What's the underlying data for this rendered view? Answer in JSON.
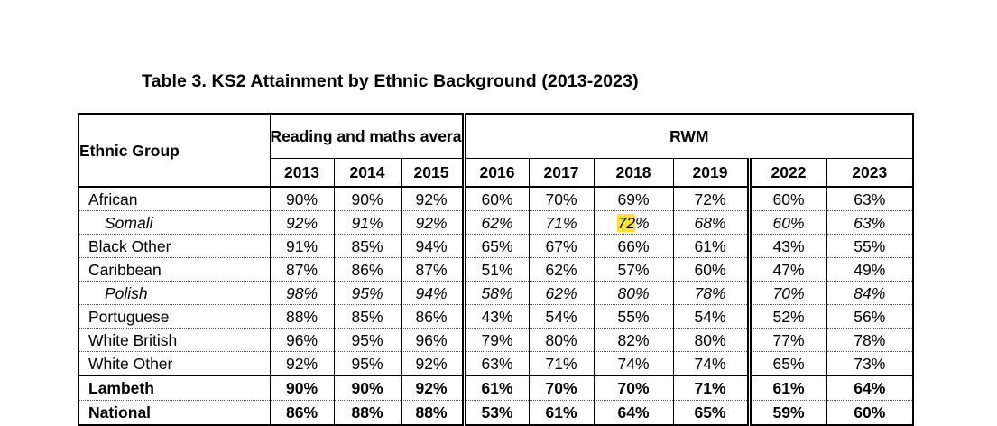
{
  "title": "Table 3.  KS2 Attainment by Ethnic Background (2013-2023)",
  "table": {
    "ethnic_group_header": "Ethnic Group",
    "group_reading_maths": "Reading and maths average",
    "group_rwm": "RWM",
    "years": [
      "2013",
      "2014",
      "2015",
      "2016",
      "2017",
      "2018",
      "2019",
      "2022",
      "2023"
    ],
    "rows": [
      {
        "name": "African",
        "style": "normal",
        "values": [
          "90%",
          "90%",
          "92%",
          "60%",
          "70%",
          "69%",
          "72%",
          "60%",
          "63%"
        ]
      },
      {
        "name": "Somali",
        "style": "italic",
        "values": [
          "92%",
          "91%",
          "92%",
          "62%",
          "71%",
          "72%",
          "68%",
          "60%",
          "63%"
        ]
      },
      {
        "name": "Black Other",
        "style": "normal",
        "values": [
          "91%",
          "85%",
          "94%",
          "65%",
          "67%",
          "66%",
          "61%",
          "43%",
          "55%"
        ]
      },
      {
        "name": "Caribbean",
        "style": "normal",
        "values": [
          "87%",
          "86%",
          "87%",
          "51%",
          "62%",
          "57%",
          "60%",
          "47%",
          "49%"
        ]
      },
      {
        "name": "Polish",
        "style": "italic",
        "values": [
          "98%",
          "95%",
          "94%",
          "58%",
          "62%",
          "80%",
          "78%",
          "70%",
          "84%"
        ]
      },
      {
        "name": "Portuguese",
        "style": "normal",
        "values": [
          "88%",
          "85%",
          "86%",
          "43%",
          "54%",
          "55%",
          "54%",
          "52%",
          "56%"
        ]
      },
      {
        "name": "White British",
        "style": "normal",
        "values": [
          "96%",
          "95%",
          "96%",
          "79%",
          "80%",
          "82%",
          "80%",
          "77%",
          "78%"
        ]
      },
      {
        "name": "White Other",
        "style": "normal",
        "values": [
          "92%",
          "95%",
          "92%",
          "63%",
          "71%",
          "74%",
          "74%",
          "65%",
          "73%"
        ]
      },
      {
        "name": "Lambeth",
        "style": "bold",
        "values": [
          "90%",
          "90%",
          "92%",
          "61%",
          "70%",
          "70%",
          "71%",
          "61%",
          "64%"
        ]
      },
      {
        "name": "National",
        "style": "bold",
        "values": [
          "86%",
          "88%",
          "88%",
          "53%",
          "61%",
          "64%",
          "65%",
          "59%",
          "60%"
        ]
      }
    ],
    "highlight": {
      "row": 1,
      "col": 5,
      "text": "72",
      "color": "#ffe22a"
    }
  }
}
